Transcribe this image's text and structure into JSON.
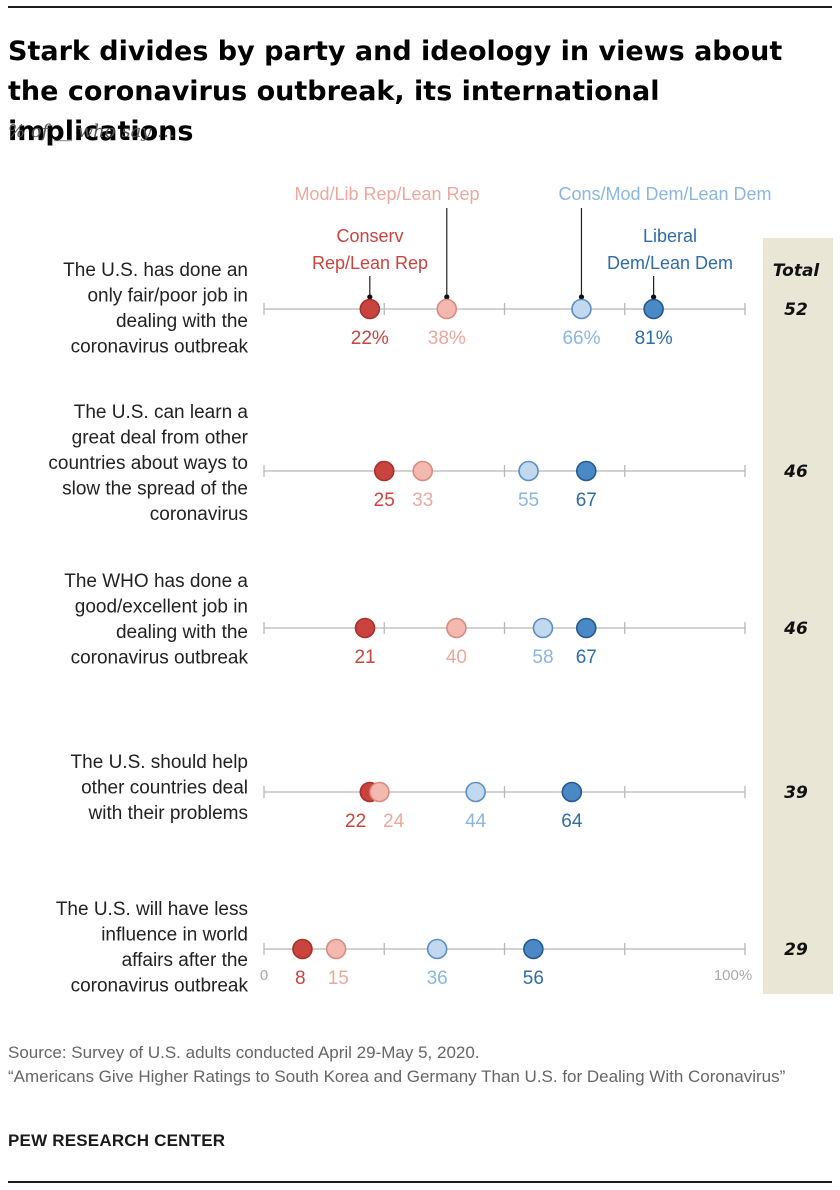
{
  "title": "Stark divides by party and ideology in views about the coronavirus outbreak, its international implications",
  "subtitle": "% of __ who say …",
  "colors": {
    "conserv_rep": "#c9443f",
    "modlib_rep": "#f3b8b0",
    "consmod_dem": "#c2d8ee",
    "liberal_dem": "#4a88c6",
    "conserv_rep_label": "#c9443f",
    "modlib_rep_label": "#eda89e",
    "consmod_dem_label": "#8bb6de",
    "liberal_dem_label": "#2f6ca8",
    "total_column": "#e9e6d6"
  },
  "chart_data": {
    "type": "scatter",
    "xlim": [
      0,
      100
    ],
    "axis_labels": {
      "min": "0",
      "max": "100%"
    },
    "total_header": "Total",
    "series": [
      {
        "name": "Conserv Rep/Lean Rep",
        "label_lines": [
          "Conserv",
          "Rep/Lean Rep"
        ],
        "key": "conserv_rep"
      },
      {
        "name": "Mod/Lib Rep/Lean Rep",
        "label_lines": [
          "Mod/Lib Rep/Lean Rep"
        ],
        "key": "modlib_rep"
      },
      {
        "name": "Cons/Mod Dem/Lean Dem",
        "label_lines": [
          "Cons/Mod Dem/Lean Dem"
        ],
        "key": "consmod_dem"
      },
      {
        "name": "Liberal Dem/Lean Dem",
        "label_lines": [
          "Liberal",
          "Dem/Lean Dem"
        ],
        "key": "liberal_dem"
      }
    ],
    "rows": [
      {
        "question": "The U.S. has done an only fair/poor job in dealing with the coronavirus outbreak",
        "question_lines": [
          "The U.S. has done an",
          "only fair/poor job in",
          "dealing with the",
          "coronavirus outbreak"
        ],
        "values": [
          22,
          38,
          66,
          81
        ],
        "labels": [
          "22%",
          "38%",
          "66%",
          "81%"
        ],
        "total": "52"
      },
      {
        "question": "The U.S. can learn a great deal from other countries about ways to slow the spread of the coronavirus",
        "question_lines": [
          "The U.S. can learn a",
          "great deal from other",
          "countries about ways to",
          "slow the spread of the",
          "coronavirus"
        ],
        "values": [
          25,
          33,
          55,
          67
        ],
        "labels": [
          "25",
          "33",
          "55",
          "67"
        ],
        "total": "46"
      },
      {
        "question": "The WHO has done a good/excellent job in dealing with the coronavirus outbreak",
        "question_lines": [
          "The WHO has done a",
          "good/excellent job in",
          "dealing with the",
          "coronavirus outbreak"
        ],
        "values": [
          21,
          40,
          58,
          67
        ],
        "labels": [
          "21",
          "40",
          "58",
          "67"
        ],
        "total": "46"
      },
      {
        "question": "The U.S. should help other countries deal with their problems",
        "question_lines": [
          "The U.S. should help",
          "other countries deal",
          "with their problems"
        ],
        "values": [
          22,
          24,
          44,
          64
        ],
        "labels": [
          "22",
          "24",
          "44",
          "64"
        ],
        "total": "39"
      },
      {
        "question": "The U.S. will have less influence in world affairs after the coronavirus outbreak",
        "question_lines": [
          "The U.S. will have less",
          "influence in world",
          "affairs after the",
          "coronavirus outbreak"
        ],
        "values": [
          8,
          15,
          36,
          56
        ],
        "labels": [
          "8",
          "15",
          "36",
          "56"
        ],
        "total": "29"
      }
    ]
  },
  "source": "Source: Survey of U.S. adults conducted April 29-May 5, 2020.",
  "report": "“Americans Give Higher Ratings to South Korea and Germany Than U.S. for Dealing With Coronavirus”",
  "brand": "PEW RESEARCH CENTER"
}
